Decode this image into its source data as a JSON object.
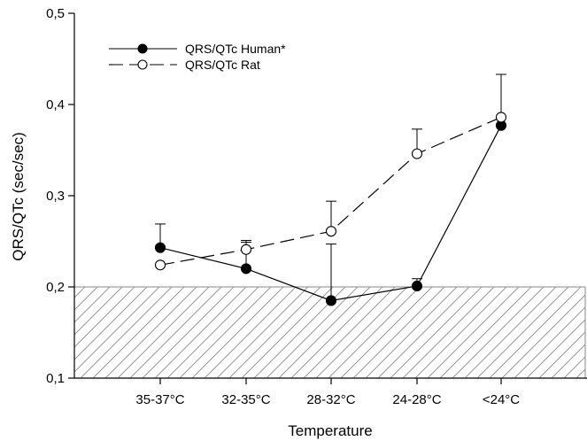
{
  "chart_data": {
    "type": "line",
    "title": "",
    "xlabel": "Temperature",
    "ylabel": "QRS/QTc (sec/sec)",
    "categories": [
      "35-37°C",
      "32-35°C",
      "28-32°C",
      "24-28°C",
      "<24°C"
    ],
    "ylim": [
      0.1,
      0.5
    ],
    "yticks": [
      0.1,
      0.2,
      0.3,
      0.4,
      0.5
    ],
    "ytick_labels": [
      "0,1",
      "0,2",
      "0,3",
      "0,4",
      "0,5"
    ],
    "shaded_region": {
      "from": 0.1,
      "to": 0.2,
      "pattern": "diagonal-hatch"
    },
    "grid": false,
    "legend_position": "top-left",
    "series": [
      {
        "name": "QRS/QTc Human*",
        "marker": "filled-circle",
        "line": "solid",
        "values": [
          0.243,
          0.22,
          0.185,
          0.201,
          0.377
        ],
        "error_upper": [
          0.026,
          0.029,
          0.062,
          0.008,
          0.0
        ]
      },
      {
        "name": "QRS/QTc Rat",
        "marker": "open-circle",
        "line": "dashed",
        "values": [
          0.224,
          0.241,
          0.261,
          0.346,
          0.386
        ],
        "error_upper": [
          0.0,
          0.01,
          0.033,
          0.027,
          0.047
        ]
      }
    ]
  }
}
